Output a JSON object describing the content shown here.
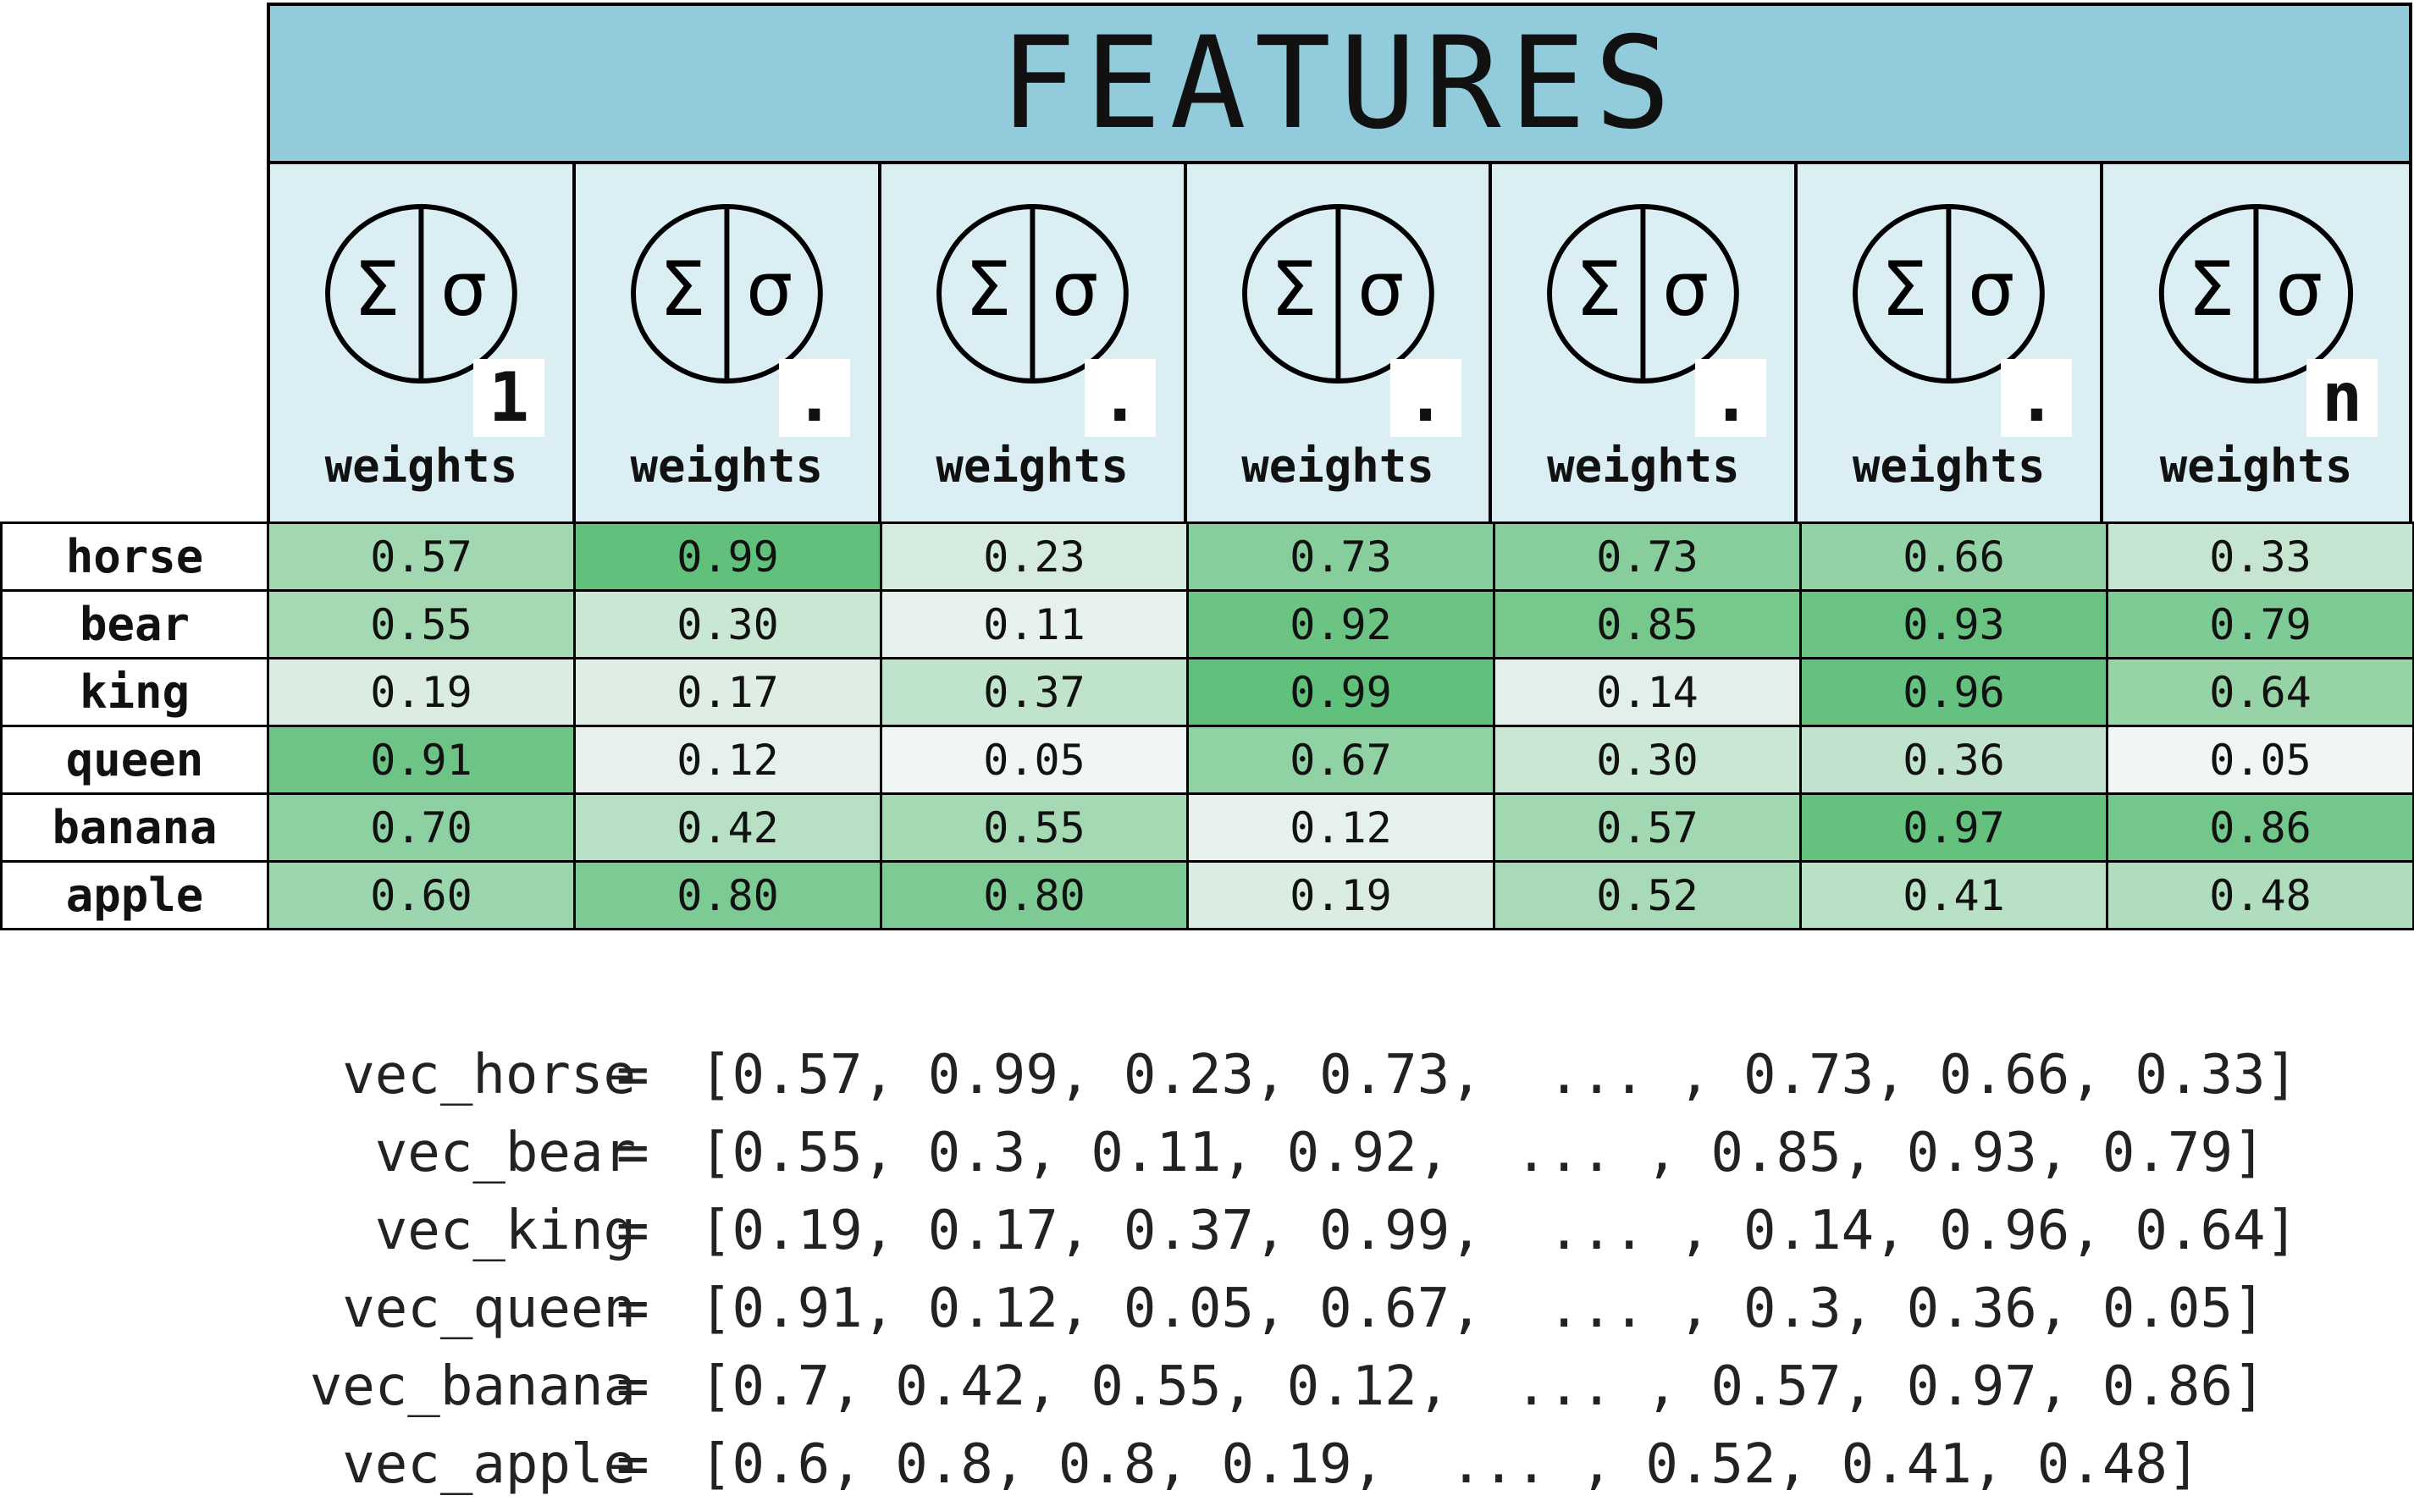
{
  "header": {
    "title": "FEATURES"
  },
  "neurons": [
    {
      "index": "1",
      "sum_symbol": "Σ",
      "sigma_symbol": "σ",
      "weights_label": "weights"
    },
    {
      "index": ".",
      "sum_symbol": "Σ",
      "sigma_symbol": "σ",
      "weights_label": "weights"
    },
    {
      "index": ".",
      "sum_symbol": "Σ",
      "sigma_symbol": "σ",
      "weights_label": "weights"
    },
    {
      "index": ".",
      "sum_symbol": "Σ",
      "sigma_symbol": "σ",
      "weights_label": "weights"
    },
    {
      "index": ".",
      "sum_symbol": "Σ",
      "sigma_symbol": "σ",
      "weights_label": "weights"
    },
    {
      "index": ".",
      "sum_symbol": "Σ",
      "sigma_symbol": "σ",
      "weights_label": "weights"
    },
    {
      "index": "n",
      "sum_symbol": "Σ",
      "sigma_symbol": "σ",
      "weights_label": "weights"
    }
  ],
  "table": {
    "rows": [
      {
        "word": "horse",
        "values": [
          "0.57",
          "0.99",
          "0.23",
          "0.73",
          "0.73",
          "0.66",
          "0.33"
        ]
      },
      {
        "word": "bear",
        "values": [
          "0.55",
          "0.30",
          "0.11",
          "0.92",
          "0.85",
          "0.93",
          "0.79"
        ]
      },
      {
        "word": "king",
        "values": [
          "0.19",
          "0.17",
          "0.37",
          "0.99",
          "0.14",
          "0.96",
          "0.64"
        ]
      },
      {
        "word": "queen",
        "values": [
          "0.91",
          "0.12",
          "0.05",
          "0.67",
          "0.30",
          "0.36",
          "0.05"
        ]
      },
      {
        "word": "banana",
        "values": [
          "0.70",
          "0.42",
          "0.55",
          "0.12",
          "0.57",
          "0.97",
          "0.86"
        ]
      },
      {
        "word": "apple",
        "values": [
          "0.60",
          "0.80",
          "0.80",
          "0.19",
          "0.52",
          "0.41",
          "0.48"
        ]
      }
    ],
    "colors": {
      "low": "#f8f8fb",
      "high": "#5fbf7a"
    }
  },
  "vectors": [
    {
      "name": "vec_horse",
      "eq": "=",
      "values": "[0.57, 0.99, 0.23, 0.73,  ... , 0.73, 0.66, 0.33]"
    },
    {
      "name": "vec_bear",
      "eq": "=",
      "values": "[0.55, 0.3, 0.11, 0.92,  ... , 0.85, 0.93, 0.79]"
    },
    {
      "name": "vec_king",
      "eq": "=",
      "values": "[0.19, 0.17, 0.37, 0.99,  ... , 0.14, 0.96, 0.64]"
    },
    {
      "name": "vec_queen",
      "eq": "=",
      "values": "[0.91, 0.12, 0.05, 0.67,  ... , 0.3, 0.36, 0.05]"
    },
    {
      "name": "vec_banana",
      "eq": "=",
      "values": "[0.7, 0.42, 0.55, 0.12,  ... , 0.57, 0.97, 0.86]"
    },
    {
      "name": "vec_apple",
      "eq": "=",
      "values": "[0.6, 0.8, 0.8, 0.19,  ... , 0.52, 0.41, 0.48]"
    }
  ]
}
